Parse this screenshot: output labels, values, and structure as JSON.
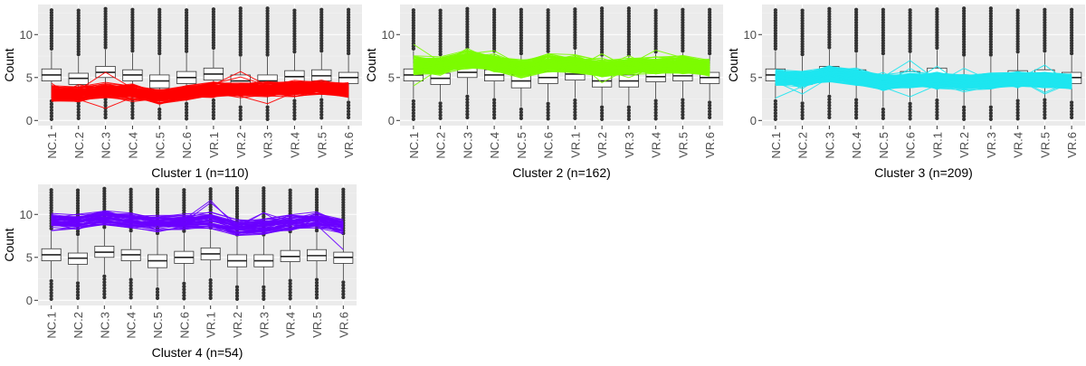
{
  "chart_data": [
    {
      "type": "line",
      "title": "Cluster 1 (n=110)",
      "ylabel": "Count",
      "categories": [
        "NC.1",
        "NC.2",
        "NC.3",
        "NC.4",
        "NC.5",
        "NC.6",
        "VR.1",
        "VR.2",
        "VR.3",
        "VR.4",
        "VR.5",
        "VR.6"
      ],
      "yticks": [
        0,
        5,
        10
      ],
      "ylim": [
        -0.6,
        13.5
      ],
      "line_color": "#ff0000",
      "line_count": 110,
      "line_profile": [
        3.1,
        3.0,
        3.5,
        3.3,
        2.8,
        3.2,
        3.6,
        3.5,
        3.6,
        3.7,
        3.8,
        3.6
      ],
      "line_spread": 0.8,
      "box_medians": [
        5.3,
        4.9,
        5.6,
        5.3,
        4.6,
        5.0,
        5.4,
        4.6,
        4.6,
        5.1,
        5.2,
        5.0
      ],
      "box_q1": [
        4.6,
        4.2,
        5.0,
        4.6,
        3.8,
        4.3,
        4.7,
        3.9,
        3.9,
        4.5,
        4.6,
        4.3
      ],
      "box_q3": [
        6.0,
        5.5,
        6.3,
        5.9,
        5.3,
        5.7,
        6.1,
        5.3,
        5.3,
        5.8,
        5.9,
        5.6
      ],
      "grid": true,
      "legend": "none"
    },
    {
      "type": "line",
      "title": "Cluster 2 (n=162)",
      "ylabel": "Count",
      "categories": [
        "NC.1",
        "NC.2",
        "NC.3",
        "NC.4",
        "NC.5",
        "NC.6",
        "VR.1",
        "VR.2",
        "VR.3",
        "VR.4",
        "VR.5",
        "VR.6"
      ],
      "yticks": [
        0,
        5,
        10
      ],
      "ylim": [
        -0.6,
        13.5
      ],
      "line_color": "#7cfc00",
      "line_count": 162,
      "line_profile": [
        6.4,
        6.3,
        7.1,
        6.7,
        6.0,
        6.7,
        6.6,
        6.1,
        6.3,
        6.4,
        6.5,
        6.1
      ],
      "line_spread": 0.9,
      "box_medians": [
        5.3,
        4.9,
        5.6,
        5.3,
        4.6,
        5.0,
        5.4,
        4.6,
        4.6,
        5.1,
        5.2,
        5.0
      ],
      "box_q1": [
        4.6,
        4.2,
        5.0,
        4.6,
        3.8,
        4.3,
        4.7,
        3.9,
        3.9,
        4.5,
        4.6,
        4.3
      ],
      "box_q3": [
        6.0,
        5.5,
        6.3,
        5.9,
        5.3,
        5.7,
        6.1,
        5.3,
        5.3,
        5.8,
        5.9,
        5.6
      ],
      "grid": true,
      "legend": "none"
    },
    {
      "type": "line",
      "title": "Cluster 3 (n=209)",
      "ylabel": "Count",
      "categories": [
        "NC.1",
        "NC.2",
        "NC.3",
        "NC.4",
        "NC.5",
        "NC.6",
        "VR.1",
        "VR.2",
        "VR.3",
        "VR.4",
        "VR.5",
        "VR.6"
      ],
      "yticks": [
        0,
        5,
        10
      ],
      "ylim": [
        -0.6,
        13.5
      ],
      "line_color": "#1ee6f0",
      "line_count": 209,
      "line_profile": [
        5.0,
        4.8,
        5.4,
        5.0,
        4.4,
        4.7,
        4.6,
        4.5,
        4.6,
        4.8,
        4.7,
        4.5
      ],
      "line_spread": 0.8,
      "box_medians": [
        5.3,
        4.9,
        5.6,
        5.3,
        4.6,
        5.0,
        5.4,
        4.6,
        4.6,
        5.1,
        5.2,
        5.0
      ],
      "box_q1": [
        4.6,
        4.2,
        5.0,
        4.6,
        3.8,
        4.3,
        4.7,
        3.9,
        3.9,
        4.5,
        4.6,
        4.3
      ],
      "box_q3": [
        6.0,
        5.5,
        6.3,
        5.9,
        5.3,
        5.7,
        6.1,
        5.3,
        5.3,
        5.8,
        5.9,
        5.6
      ],
      "grid": true,
      "legend": "none"
    },
    {
      "type": "line",
      "title": "Cluster 4 (n=54)",
      "ylabel": "Count",
      "categories": [
        "NC.1",
        "NC.2",
        "NC.3",
        "NC.4",
        "NC.5",
        "NC.6",
        "VR.1",
        "VR.2",
        "VR.3",
        "VR.4",
        "VR.5",
        "VR.6"
      ],
      "yticks": [
        0,
        5,
        10
      ],
      "ylim": [
        -0.6,
        13.5
      ],
      "line_color": "#6a00ff",
      "line_count": 54,
      "line_profile": [
        9.2,
        9.1,
        9.6,
        9.3,
        9.0,
        9.1,
        9.3,
        8.5,
        8.6,
        9.0,
        9.3,
        8.6
      ],
      "line_spread": 0.9,
      "box_medians": [
        5.3,
        4.9,
        5.6,
        5.3,
        4.6,
        5.0,
        5.4,
        4.6,
        4.6,
        5.1,
        5.2,
        5.0
      ],
      "box_q1": [
        4.6,
        4.2,
        5.0,
        4.6,
        3.8,
        4.3,
        4.7,
        3.9,
        3.9,
        4.5,
        4.6,
        4.3
      ],
      "box_q3": [
        6.0,
        5.5,
        6.3,
        5.9,
        5.3,
        5.7,
        6.1,
        5.3,
        5.3,
        5.8,
        5.9,
        5.6
      ],
      "grid": true,
      "legend": "none"
    }
  ]
}
